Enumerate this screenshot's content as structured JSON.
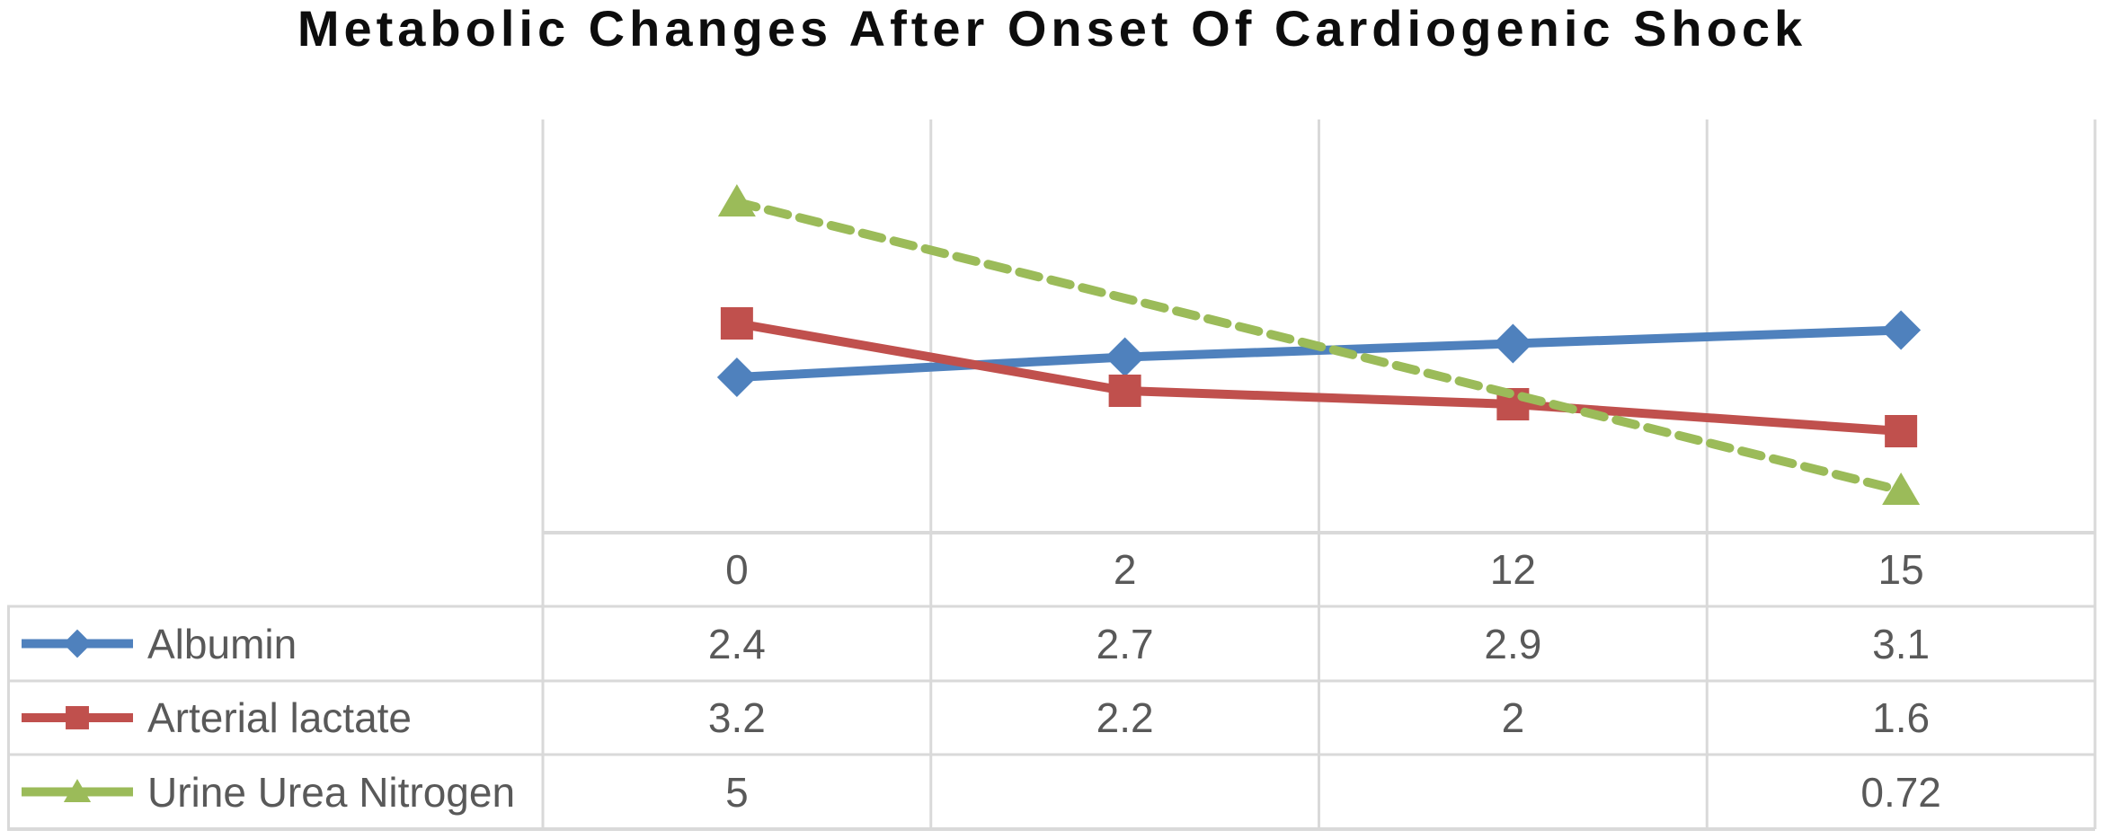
{
  "chart_data": {
    "type": "line",
    "title": "Metabolic Changes After Onset Of Cardiogenic Shock",
    "categories": [
      "0",
      "2",
      "12",
      "15"
    ],
    "series": [
      {
        "name": "Albumin",
        "values": [
          2.4,
          2.7,
          2.9,
          3.1
        ],
        "color": "#4F81BD",
        "marker": "diamond",
        "line_style": "solid"
      },
      {
        "name": "Arterial lactate",
        "values": [
          3.2,
          2.2,
          2,
          1.6
        ],
        "color": "#C0504D",
        "marker": "square",
        "line_style": "solid"
      },
      {
        "name": "Urine Urea Nitrogen",
        "values": [
          5,
          null,
          null,
          0.72
        ],
        "color": "#9BBB59",
        "marker": "triangle",
        "line_style": "dashed"
      }
    ],
    "ylim": [
      0,
      6.2
    ],
    "grid": "vertical-only",
    "legend_position": "left-of-table-rows",
    "data_table_shown": true
  },
  "styles": {
    "grid_color": "#D9D9D9",
    "text_color": "#595959",
    "title_color": "#0D0D0D",
    "background": "#FFFFFF"
  }
}
